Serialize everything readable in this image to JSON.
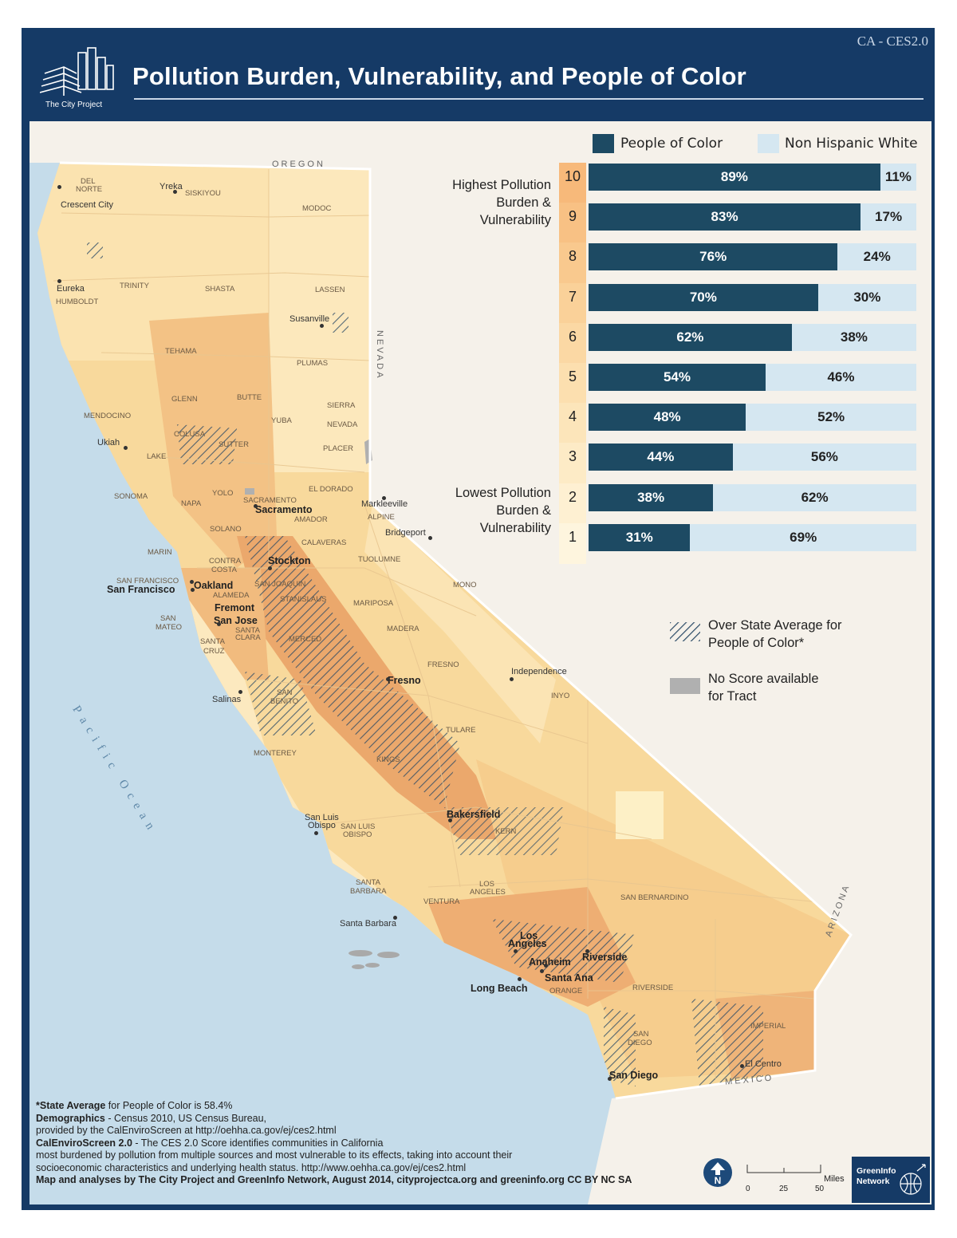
{
  "header": {
    "code": "CA - CES2.0",
    "title": "Pollution Burden, Vulnerability, and People of Color",
    "logo_text": "The City Project"
  },
  "legend": {
    "poc_label": "People of Color",
    "white_label": "Non Hispanic White",
    "poc_color": "#1d4a63",
    "white_color": "#d5e7f1"
  },
  "chart_data": {
    "type": "bar",
    "stacked": true,
    "orientation": "horizontal",
    "categories": [
      "10",
      "9",
      "8",
      "7",
      "6",
      "5",
      "4",
      "3",
      "2",
      "1"
    ],
    "series": [
      {
        "name": "People of Color",
        "values": [
          89,
          83,
          76,
          70,
          62,
          54,
          48,
          44,
          38,
          31
        ]
      },
      {
        "name": "Non Hispanic White",
        "values": [
          11,
          17,
          24,
          30,
          38,
          46,
          52,
          56,
          62,
          69
        ]
      }
    ],
    "value_suffix": "%",
    "top_label": [
      "Highest Pollution",
      "Burden &",
      "Vulnerability"
    ],
    "bottom_label": [
      "Lowest Pollution",
      "Burden &",
      "Vulnerability"
    ],
    "decile_colors": [
      "#f7b97a",
      "#f8c184",
      "#f9c98e",
      "#fad199",
      "#fbd8a4",
      "#fcdfaf",
      "#fce5ba",
      "#fdebc6",
      "#fef0d2",
      "#fef5de"
    ]
  },
  "map_key": {
    "hatch_label": [
      "Over State Average for",
      "People of Color*"
    ],
    "noscore_label": [
      "No Score available",
      "for Tract"
    ]
  },
  "map": {
    "borders": {
      "oregon": "OREGON",
      "nevada": "NEVADA",
      "arizona": "ARIZONA",
      "mexico": "MEXICO"
    },
    "ocean": "Pacific Ocean",
    "counties": [
      {
        "name": "DEL",
        "cls": "c-delnorte1"
      },
      {
        "name": "NORTE",
        "cls": "c-delnorte2"
      },
      {
        "name": "SISKIYOU",
        "cls": "c-siskiyou"
      },
      {
        "name": "MODOC",
        "cls": "c-modoc"
      },
      {
        "name": "TRINITY",
        "cls": "c-trinity"
      },
      {
        "name": "SHASTA",
        "cls": "c-shasta"
      },
      {
        "name": "LASSEN",
        "cls": "c-lassen"
      },
      {
        "name": "HUMBOLDT",
        "cls": "c-humboldt"
      },
      {
        "name": "TEHAMA",
        "cls": "c-tehama"
      },
      {
        "name": "PLUMAS",
        "cls": "c-plumas"
      },
      {
        "name": "GLENN",
        "cls": "c-glenn"
      },
      {
        "name": "BUTTE",
        "cls": "c-butte"
      },
      {
        "name": "SIERRA",
        "cls": "c-sierra"
      },
      {
        "name": "MENDOCINO",
        "cls": "c-mendocino"
      },
      {
        "name": "YUBA",
        "cls": "c-yuba"
      },
      {
        "name": "NEVADA",
        "cls": "c-nevada"
      },
      {
        "name": "COLUSA",
        "cls": "c-colusa"
      },
      {
        "name": "SUTTER",
        "cls": "c-sutter"
      },
      {
        "name": "PLACER",
        "cls": "c-placer"
      },
      {
        "name": "LAKE",
        "cls": "c-lake"
      },
      {
        "name": "EL DORADO",
        "cls": "c-eldorado"
      },
      {
        "name": "SONOMA",
        "cls": "c-sonoma"
      },
      {
        "name": "YOLO",
        "cls": "c-yolo"
      },
      {
        "name": "SACRAMENTO",
        "cls": "c-sacco"
      },
      {
        "name": "NAPA",
        "cls": "c-napa"
      },
      {
        "name": "ALPINE",
        "cls": "c-alpine"
      },
      {
        "name": "AMADOR",
        "cls": "c-amador"
      },
      {
        "name": "SOLANO",
        "cls": "c-solano"
      },
      {
        "name": "CALAVERAS",
        "cls": "c-calaveras"
      },
      {
        "name": "MARIN",
        "cls": "c-marin"
      },
      {
        "name": "CONTRA",
        "cls": "c-contra1"
      },
      {
        "name": "COSTA",
        "cls": "c-contra2"
      },
      {
        "name": "TUOLUMNE",
        "cls": "c-tuolumne"
      },
      {
        "name": "SAN FRANCISCO",
        "cls": "c-sfco"
      },
      {
        "name": "SAN JOAQUIN",
        "cls": "c-sanjoaquin"
      },
      {
        "name": "MONO",
        "cls": "c-mono"
      },
      {
        "name": "ALAMEDA",
        "cls": "c-alameda"
      },
      {
        "name": "STANISLAUS",
        "cls": "c-stanislaus"
      },
      {
        "name": "MARIPOSA",
        "cls": "c-mariposa"
      },
      {
        "name": "SAN",
        "cls": "c-sanmateo1"
      },
      {
        "name": "MATEO",
        "cls": "c-sanmateo2"
      },
      {
        "name": "SANTA",
        "cls": "c-santaclara1"
      },
      {
        "name": "CLARA",
        "cls": "c-santaclara2"
      },
      {
        "name": "MADERA",
        "cls": "c-madera"
      },
      {
        "name": "SANTA",
        "cls": "c-santacruz1"
      },
      {
        "name": "CRUZ",
        "cls": "c-santacruz2"
      },
      {
        "name": "MERCED",
        "cls": "c-merced"
      },
      {
        "name": "FRESNO",
        "cls": "c-fresno"
      },
      {
        "name": "SAN",
        "cls": "c-sanbenito1"
      },
      {
        "name": "BENITO",
        "cls": "c-sanbenito2"
      },
      {
        "name": "INYO",
        "cls": "c-inyo"
      },
      {
        "name": "TULARE",
        "cls": "c-tulare"
      },
      {
        "name": "MONTEREY",
        "cls": "c-monterey"
      },
      {
        "name": "KINGS",
        "cls": "c-kings"
      },
      {
        "name": "KERN",
        "cls": "c-kern"
      },
      {
        "name": "SAN LUIS",
        "cls": "c-slo1"
      },
      {
        "name": "OBISPO",
        "cls": "c-slo2"
      },
      {
        "name": "SANTA",
        "cls": "c-sb1"
      },
      {
        "name": "BARBARA",
        "cls": "c-sb2"
      },
      {
        "name": "LOS",
        "cls": "c-la1"
      },
      {
        "name": "ANGELES",
        "cls": "c-la2"
      },
      {
        "name": "VENTURA",
        "cls": "c-ventura"
      },
      {
        "name": "SAN BERNARDINO",
        "cls": "c-sanbern"
      },
      {
        "name": "ORANGE",
        "cls": "c-orange"
      },
      {
        "name": "RIVERSIDE",
        "cls": "c-riversideco"
      },
      {
        "name": "IMPERIAL",
        "cls": "c-imperial"
      },
      {
        "name": "SAN",
        "cls": "c-sd1"
      },
      {
        "name": "DIEGO",
        "cls": "c-sd2"
      }
    ],
    "cities": [
      {
        "name": "Yreka",
        "cls": "t-yreka",
        "big": false
      },
      {
        "name": "Crescent City",
        "cls": "t-crescent",
        "big": false
      },
      {
        "name": "Eureka",
        "cls": "t-eureka",
        "big": false
      },
      {
        "name": "Susanville",
        "cls": "t-susanville",
        "big": false
      },
      {
        "name": "Ukiah",
        "cls": "t-ukiah",
        "big": false
      },
      {
        "name": "Sacramento",
        "cls": "t-sacramento",
        "big": true
      },
      {
        "name": "Markleeville",
        "cls": "t-markleeville",
        "big": false
      },
      {
        "name": "Bridgeport",
        "cls": "t-bridgeport",
        "big": false
      },
      {
        "name": "Stockton",
        "cls": "t-stockton",
        "big": true
      },
      {
        "name": "San Francisco",
        "cls": "t-sf",
        "big": true
      },
      {
        "name": "Oakland",
        "cls": "t-oakland",
        "big": true
      },
      {
        "name": "Fremont",
        "cls": "t-fremont",
        "big": true
      },
      {
        "name": "San Jose",
        "cls": "t-sanjose",
        "big": true
      },
      {
        "name": "Independence",
        "cls": "t-independence",
        "big": false
      },
      {
        "name": "Fresno",
        "cls": "t-fresno",
        "big": true
      },
      {
        "name": "Salinas",
        "cls": "t-salinas",
        "big": false
      },
      {
        "name": "Bakersfield",
        "cls": "t-bakersfield",
        "big": true
      },
      {
        "name": "San Luis",
        "cls": "t-slo-a",
        "big": false
      },
      {
        "name": "Obispo",
        "cls": "t-slo-b",
        "big": false
      },
      {
        "name": "Santa Barbara",
        "cls": "t-santabarbara",
        "big": false
      },
      {
        "name": "Los",
        "cls": "t-la-a",
        "big": true
      },
      {
        "name": "Angeles",
        "cls": "t-la-b",
        "big": true
      },
      {
        "name": "Riverside",
        "cls": "t-riverside",
        "big": true
      },
      {
        "name": "Anaheim",
        "cls": "t-anaheim",
        "big": true
      },
      {
        "name": "Santa Ana",
        "cls": "t-santaana",
        "big": true
      },
      {
        "name": "Long Beach",
        "cls": "t-longbeach",
        "big": true
      },
      {
        "name": "El Centro",
        "cls": "t-elcentro",
        "big": false
      },
      {
        "name": "San Diego",
        "cls": "t-sandiego",
        "big": true
      }
    ]
  },
  "notes": {
    "line1_bold": "*State Average",
    "line1_rest": " for People of Color is 58.4%",
    "line2_bold": "Demographics",
    "line2_rest": " - Census 2010, US Census Bureau,",
    "line3": "provided by the CalEnviroScreen at http://oehha.ca.gov/ej/ces2.html",
    "line4_bold": "CalEnviroScreen 2.0",
    "line4_rest": " - The CES 2.0 Score identifies communities in California",
    "line5": "most burdened by pollution from multiple sources and most vulnerable to its effects, taking into account their",
    "line6": "socioeconomic characteristics and underlying health status. http://www.oehha.ca.gov/ej/ces2.html",
    "credit": "Map and analyses by The City Project and GreenInfo Network, August 2014,  cityprojectca.org and greeninfo.org CC BY NC SA"
  },
  "scale": {
    "unit": "Miles",
    "ticks": [
      "0",
      "25",
      "50"
    ]
  },
  "greeninfo": [
    "GreenInfo",
    "Network"
  ]
}
